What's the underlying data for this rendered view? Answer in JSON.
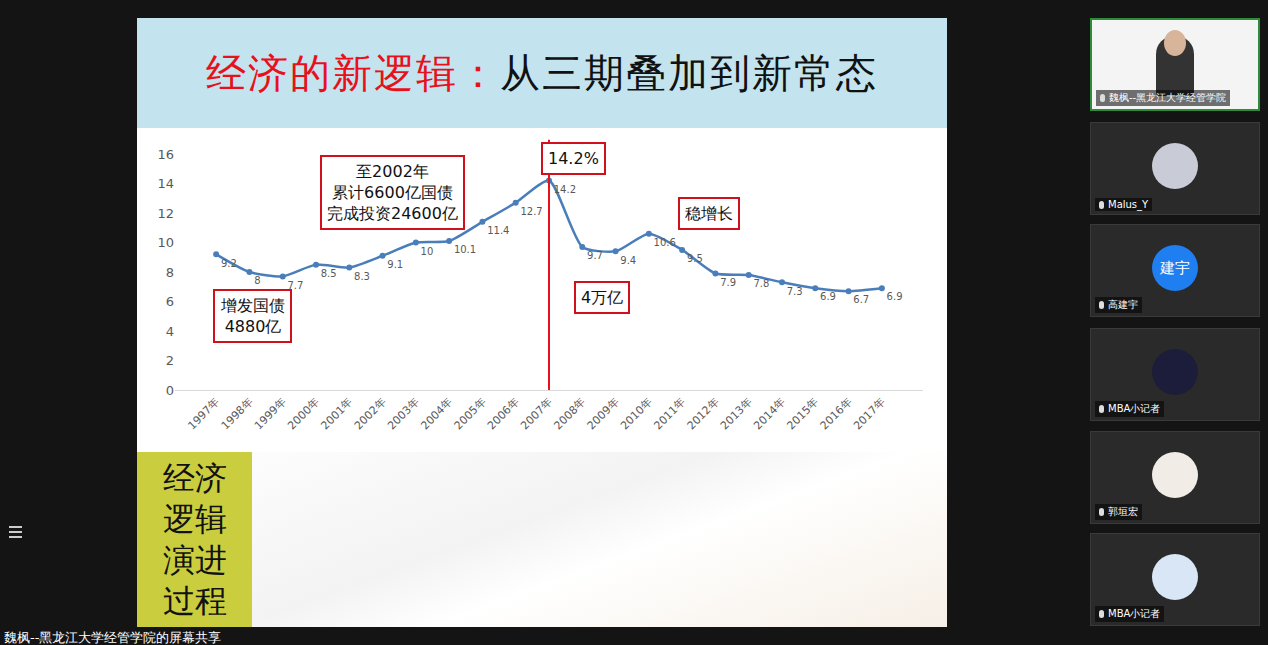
{
  "chart_data": {
    "type": "line",
    "categories": [
      "1997年",
      "1998年",
      "1999年",
      "2000年",
      "2001年",
      "2002年",
      "2003年",
      "2004年",
      "2005年",
      "2006年",
      "2007年",
      "2008年",
      "2009年",
      "2010年",
      "2011年",
      "2012年",
      "2013年",
      "2014年",
      "2015年",
      "2016年",
      "2017年"
    ],
    "values": [
      9.2,
      8,
      7.7,
      8.5,
      8.3,
      9.1,
      10,
      10.1,
      11.4,
      12.7,
      14.2,
      9.7,
      9.4,
      10.6,
      9.5,
      7.9,
      7.8,
      7.3,
      6.9,
      6.7,
      6.9
    ],
    "color": "#4a7ebb",
    "ylim": [
      0,
      16
    ],
    "yticks": [
      0,
      2,
      4,
      6,
      8,
      10,
      12,
      14,
      16
    ],
    "grid": false,
    "data_labels": true,
    "marker": "circle",
    "annotations": [
      {
        "text": [
          "增发国债",
          "4880亿"
        ],
        "category": "1998年"
      },
      {
        "text": [
          "至2002年",
          "累计6600亿国债",
          "完成投资24600亿"
        ],
        "category": "2002年"
      },
      {
        "text": [
          "14.2%"
        ],
        "category": "2007年"
      },
      {
        "text": [
          "4万亿"
        ],
        "category": "2008年"
      },
      {
        "text": [
          "稳增长"
        ],
        "category": "2011年"
      }
    ]
  },
  "slide": {
    "title_highlight": "经济的新逻辑：",
    "title_rest": "从三期叠加到新常态",
    "side_box": [
      "经济",
      "逻辑",
      "演进",
      "过程"
    ]
  },
  "meeting": {
    "participants": [
      {
        "name": "魏枫--黑龙江大学经管学院"
      },
      {
        "name": "Malus_Y"
      },
      {
        "name": "高建宇",
        "avatar_text": "建宇"
      },
      {
        "name": "MBA小记者"
      },
      {
        "name": "郭垣宏"
      },
      {
        "name": "MBA小记者"
      }
    ],
    "share_caption": "魏枫--黑龙江大学经管学院的屏幕共享"
  }
}
